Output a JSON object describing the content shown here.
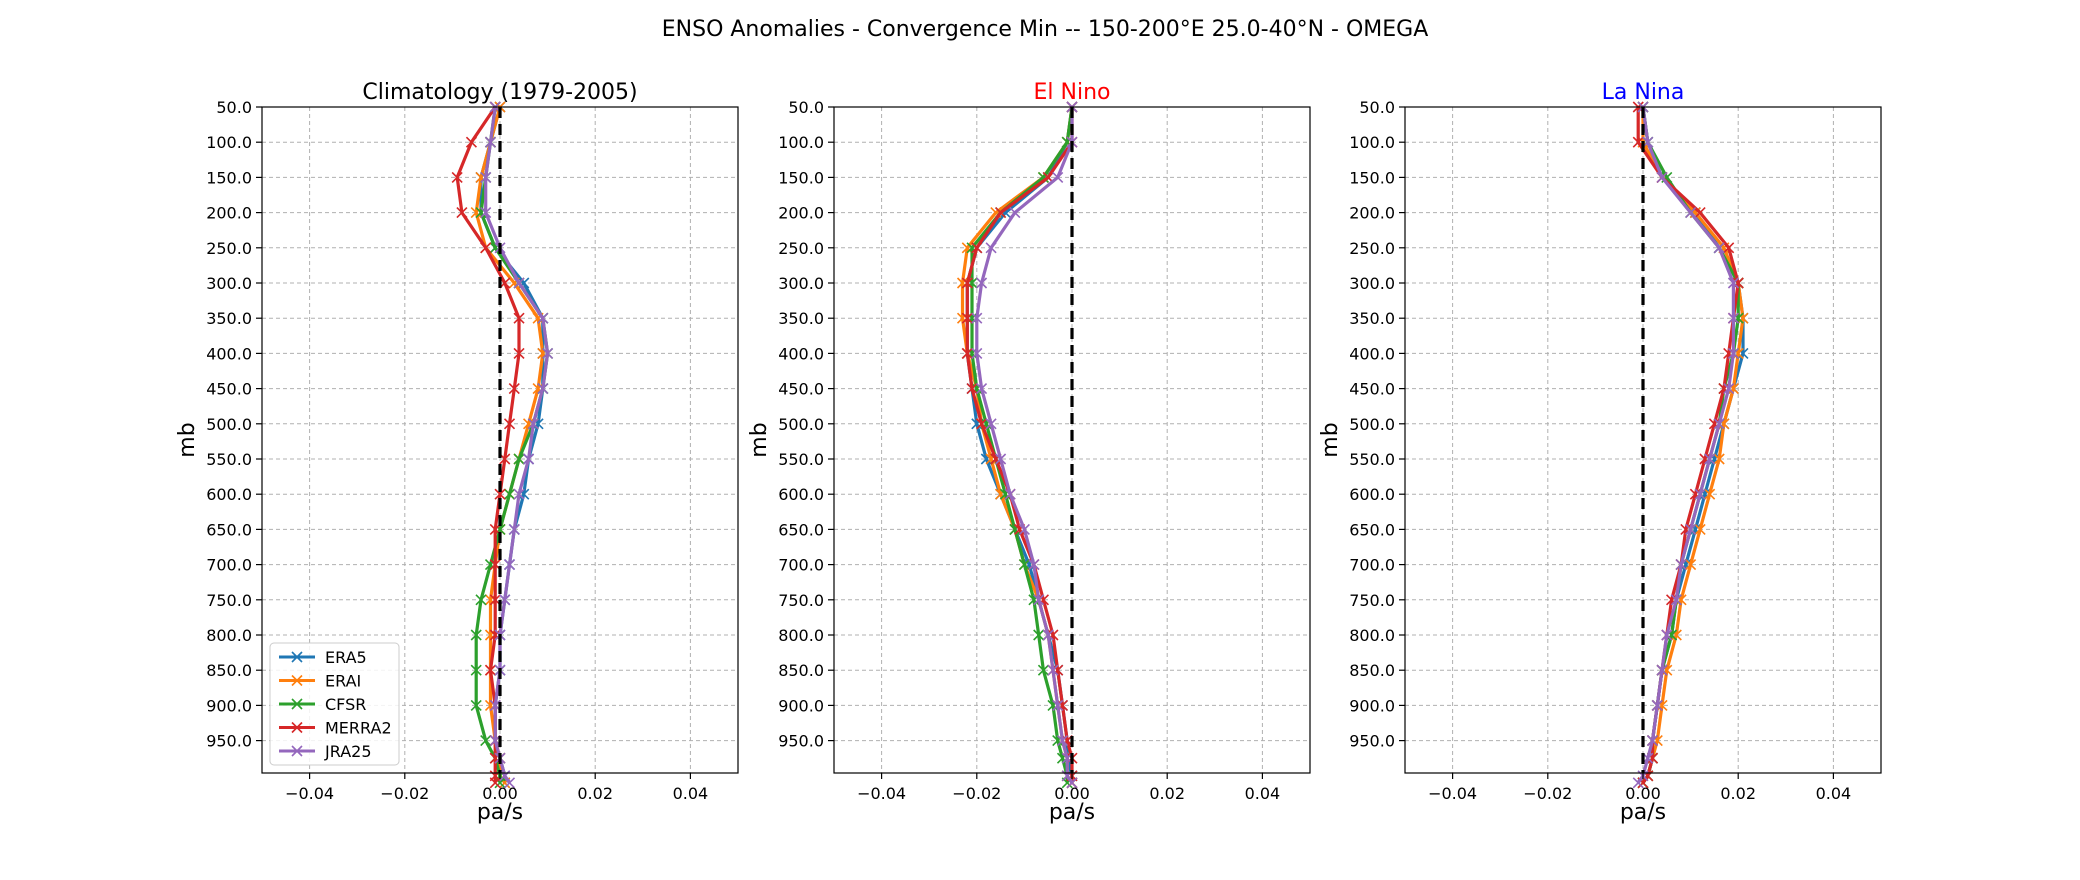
{
  "suptitle": "ENSO Anomalies - Convergence Min -- 150-200°E 25.0-40°N - OMEGA",
  "chart_data": [
    {
      "type": "line",
      "title": "Climatology (1979-2005)",
      "title_color": "#000000",
      "xlabel": "pa/s",
      "ylabel": "mb",
      "xlim": [
        -0.05,
        0.05
      ],
      "xticks": [
        -0.04,
        -0.02,
        0.0,
        0.02,
        0.04
      ],
      "xtick_labels": [
        "−0.04",
        "−0.02",
        "0.00",
        "0.02",
        "0.04"
      ],
      "ylim": [
        1000,
        50
      ],
      "yticks": [
        50,
        100,
        150,
        200,
        250,
        300,
        350,
        400,
        450,
        500,
        550,
        600,
        650,
        700,
        750,
        800,
        850,
        900,
        950
      ],
      "ytick_labels": [
        "50.0",
        "100.0",
        "150.0",
        "200.0",
        "250.0",
        "300.0",
        "350.0",
        "400.0",
        "450.0",
        "500.0",
        "550.0",
        "600.0",
        "650.0",
        "700.0",
        "750.0",
        "800.0",
        "850.0",
        "900.0",
        "950.0"
      ],
      "grid": true,
      "legend": "lower-left",
      "reference_line": 0,
      "series": [
        {
          "name": "ERA5",
          "color": "#1f77b4",
          "x": [
            0.0,
            -0.002,
            -0.004,
            -0.004,
            -0.001,
            0.005,
            0.009,
            0.009,
            0.009,
            0.008,
            0.006,
            0.005,
            0.003,
            0.002,
            0.001,
            0.0,
            0.0,
            -0.001,
            -0.001,
            0.0,
            0.001,
            0.001
          ]
        },
        {
          "name": "ERAI",
          "color": "#ff7f0e",
          "x": [
            0.0,
            -0.002,
            -0.004,
            -0.005,
            -0.003,
            0.003,
            0.008,
            0.009,
            0.008,
            0.006,
            0.004,
            0.002,
            0.0,
            -0.001,
            -0.002,
            -0.002,
            -0.002,
            -0.002,
            -0.001,
            0.0,
            0.0,
            0.001
          ]
        },
        {
          "name": "CFSR",
          "color": "#2ca02c",
          "x": [
            -0.001,
            -0.002,
            -0.003,
            -0.004,
            -0.001,
            0.004,
            0.009,
            0.01,
            0.009,
            0.007,
            0.004,
            0.002,
            0.0,
            -0.002,
            -0.004,
            -0.005,
            -0.005,
            -0.005,
            -0.003,
            -0.001,
            0.0,
            0.0
          ]
        },
        {
          "name": "MERRA2",
          "color": "#d62728",
          "x": [
            -0.001,
            -0.006,
            -0.009,
            -0.008,
            -0.003,
            0.001,
            0.004,
            0.004,
            0.003,
            0.002,
            0.001,
            0.0,
            -0.001,
            -0.001,
            -0.001,
            -0.001,
            -0.002,
            -0.001,
            -0.001,
            -0.001,
            -0.001,
            -0.001
          ]
        },
        {
          "name": "JRA25",
          "color": "#9467bd",
          "x": [
            -0.001,
            -0.002,
            -0.003,
            -0.003,
            0.0,
            0.004,
            0.009,
            0.01,
            0.009,
            0.007,
            0.006,
            0.004,
            0.003,
            0.002,
            0.001,
            0.0,
            0.0,
            -0.001,
            -0.001,
            0.0,
            0.001,
            0.002
          ]
        }
      ]
    },
    {
      "type": "line",
      "title": "El Nino",
      "title_color": "#ff0000",
      "xlabel": "pa/s",
      "ylabel": "mb",
      "xlim": [
        -0.05,
        0.05
      ],
      "xticks": [
        -0.04,
        -0.02,
        0.0,
        0.02,
        0.04
      ],
      "xtick_labels": [
        "−0.04",
        "−0.02",
        "0.00",
        "0.02",
        "0.04"
      ],
      "ylim": [
        1000,
        50
      ],
      "yticks": [
        50,
        100,
        150,
        200,
        250,
        300,
        350,
        400,
        450,
        500,
        550,
        600,
        650,
        700,
        750,
        800,
        850,
        900,
        950
      ],
      "ytick_labels": [
        "50.0",
        "100.0",
        "150.0",
        "200.0",
        "250.0",
        "300.0",
        "350.0",
        "400.0",
        "450.0",
        "500.0",
        "550.0",
        "600.0",
        "650.0",
        "700.0",
        "750.0",
        "800.0",
        "850.0",
        "900.0",
        "950.0"
      ],
      "grid": true,
      "legend": "",
      "reference_line": 0,
      "series": [
        {
          "name": "ERA5",
          "color": "#1f77b4",
          "x": [
            0.0,
            -0.001,
            -0.005,
            -0.014,
            -0.02,
            -0.022,
            -0.022,
            -0.022,
            -0.021,
            -0.02,
            -0.018,
            -0.015,
            -0.012,
            -0.009,
            -0.007,
            -0.005,
            -0.003,
            -0.002,
            -0.001,
            -0.001,
            0.0,
            0.0
          ]
        },
        {
          "name": "ERAI",
          "color": "#ff7f0e",
          "x": [
            0.0,
            -0.001,
            -0.006,
            -0.016,
            -0.022,
            -0.023,
            -0.023,
            -0.022,
            -0.02,
            -0.019,
            -0.017,
            -0.015,
            -0.012,
            -0.01,
            -0.007,
            -0.005,
            -0.004,
            -0.003,
            -0.002,
            -0.001,
            -0.001,
            0.0
          ]
        },
        {
          "name": "CFSR",
          "color": "#2ca02c",
          "x": [
            0.0,
            -0.001,
            -0.006,
            -0.015,
            -0.021,
            -0.021,
            -0.021,
            -0.021,
            -0.02,
            -0.018,
            -0.016,
            -0.014,
            -0.012,
            -0.01,
            -0.008,
            -0.007,
            -0.006,
            -0.004,
            -0.003,
            -0.002,
            -0.001,
            -0.001
          ]
        },
        {
          "name": "MERRA2",
          "color": "#d62728",
          "x": [
            0.0,
            0.0,
            -0.005,
            -0.015,
            -0.02,
            -0.022,
            -0.022,
            -0.022,
            -0.021,
            -0.019,
            -0.016,
            -0.013,
            -0.011,
            -0.008,
            -0.006,
            -0.004,
            -0.003,
            -0.002,
            -0.001,
            0.0,
            0.0,
            0.0
          ]
        },
        {
          "name": "JRA25",
          "color": "#9467bd",
          "x": [
            0.0,
            0.0,
            -0.003,
            -0.012,
            -0.017,
            -0.019,
            -0.02,
            -0.02,
            -0.019,
            -0.017,
            -0.015,
            -0.013,
            -0.01,
            -0.008,
            -0.007,
            -0.005,
            -0.004,
            -0.003,
            -0.002,
            -0.001,
            -0.001,
            0.0
          ]
        }
      ]
    },
    {
      "type": "line",
      "title": "La Nina",
      "title_color": "#0000ff",
      "xlabel": "pa/s",
      "ylabel": "mb",
      "xlim": [
        -0.05,
        0.05
      ],
      "xticks": [
        -0.04,
        -0.02,
        0.0,
        0.02,
        0.04
      ],
      "xtick_labels": [
        "−0.04",
        "−0.02",
        "0.00",
        "0.02",
        "0.04"
      ],
      "ylim": [
        1000,
        50
      ],
      "yticks": [
        50,
        100,
        150,
        200,
        250,
        300,
        350,
        400,
        450,
        500,
        550,
        600,
        650,
        700,
        750,
        800,
        850,
        900,
        950
      ],
      "ytick_labels": [
        "50.0",
        "100.0",
        "150.0",
        "200.0",
        "250.0",
        "300.0",
        "350.0",
        "400.0",
        "450.0",
        "500.0",
        "550.0",
        "600.0",
        "650.0",
        "700.0",
        "750.0",
        "800.0",
        "850.0",
        "900.0",
        "950.0"
      ],
      "grid": true,
      "legend": "",
      "reference_line": 0,
      "series": [
        {
          "name": "ERA5",
          "color": "#1f77b4",
          "x": [
            0.0,
            0.001,
            0.004,
            0.011,
            0.016,
            0.02,
            0.021,
            0.021,
            0.019,
            0.017,
            0.015,
            0.013,
            0.011,
            0.009,
            0.007,
            0.006,
            0.004,
            0.003,
            0.002,
            0.002,
            0.001,
            0.0
          ]
        },
        {
          "name": "ERAI",
          "color": "#ff7f0e",
          "x": [
            0.0,
            0.0,
            0.004,
            0.011,
            0.017,
            0.02,
            0.021,
            0.02,
            0.019,
            0.017,
            0.016,
            0.014,
            0.012,
            0.01,
            0.008,
            0.007,
            0.005,
            0.004,
            0.003,
            0.002,
            0.001,
            0.0
          ]
        },
        {
          "name": "CFSR",
          "color": "#2ca02c",
          "x": [
            0.0,
            0.001,
            0.005,
            0.01,
            0.016,
            0.02,
            0.02,
            0.019,
            0.017,
            0.016,
            0.014,
            0.012,
            0.01,
            0.008,
            0.007,
            0.006,
            0.004,
            0.003,
            0.002,
            0.002,
            0.001,
            0.0
          ]
        },
        {
          "name": "MERRA2",
          "color": "#d62728",
          "x": [
            -0.001,
            -0.001,
            0.004,
            0.012,
            0.018,
            0.02,
            0.019,
            0.018,
            0.017,
            0.015,
            0.013,
            0.011,
            0.009,
            0.008,
            0.006,
            0.005,
            0.004,
            0.003,
            0.002,
            0.002,
            0.001,
            0.0
          ]
        },
        {
          "name": "JRA25",
          "color": "#9467bd",
          "x": [
            0.0,
            0.001,
            0.004,
            0.01,
            0.016,
            0.019,
            0.019,
            0.019,
            0.018,
            0.016,
            0.014,
            0.012,
            0.01,
            0.008,
            0.007,
            0.005,
            0.004,
            0.003,
            0.002,
            0.001,
            0.0,
            -0.001
          ]
        }
      ]
    }
  ],
  "pressure_levels": [
    50,
    100,
    150,
    200,
    250,
    300,
    350,
    400,
    450,
    500,
    550,
    600,
    650,
    700,
    750,
    800,
    850,
    900,
    950,
    975,
    1000,
    1010
  ]
}
